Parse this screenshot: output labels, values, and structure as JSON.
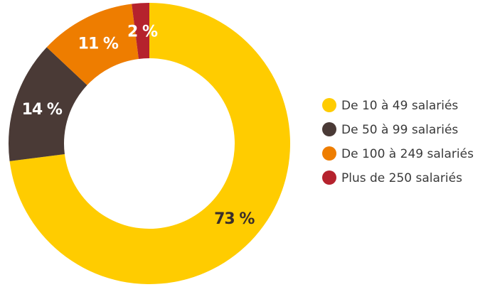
{
  "chart_data": {
    "type": "donut",
    "categories": [
      "De 10 à 49 salariés",
      "De 50 à 99 salariés",
      "De 100 à 249 salariés",
      "Plus de 250 salariés"
    ],
    "values": [
      73,
      14,
      11,
      2
    ],
    "value_labels": [
      "73 %",
      "14 %",
      "11 %",
      "2 %"
    ],
    "colors": [
      "#FFCC00",
      "#4A3A36",
      "#EE7D00",
      "#B5222D"
    ],
    "label_colors": [
      "#3a2e2a",
      "#ffffff",
      "#ffffff",
      "#ffffff"
    ],
    "legend": "right"
  }
}
